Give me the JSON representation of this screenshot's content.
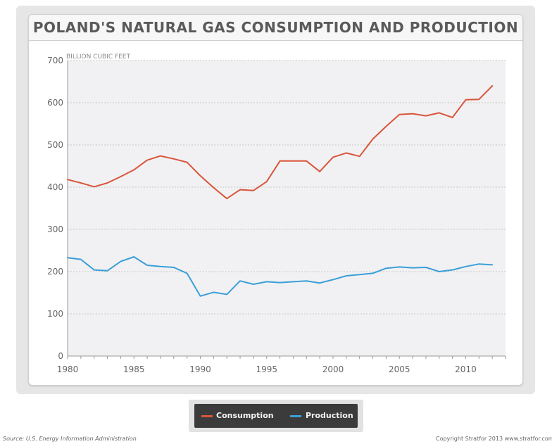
{
  "chart_data": {
    "type": "line",
    "title": "POLAND'S NATURAL GAS CONSUMPTION AND PRODUCTION",
    "ylabel": "BILLION CUBIC FEET",
    "xlabel": "",
    "xlim": [
      1980,
      2013
    ],
    "ylim": [
      0,
      700
    ],
    "x_ticks": [
      "1980",
      "1985",
      "1990",
      "1995",
      "2000",
      "2005",
      "2010"
    ],
    "y_ticks": [
      "0",
      "100",
      "200",
      "300",
      "400",
      "500",
      "600",
      "700"
    ],
    "grid": true,
    "legend_position": "bottom",
    "x": [
      1980,
      1981,
      1982,
      1983,
      1984,
      1985,
      1986,
      1987,
      1988,
      1989,
      1990,
      1991,
      1992,
      1993,
      1994,
      1995,
      1996,
      1997,
      1998,
      1999,
      2000,
      2001,
      2002,
      2003,
      2004,
      2005,
      2006,
      2007,
      2008,
      2009,
      2010,
      2011,
      2012,
      2013
    ],
    "series": [
      {
        "name": "Consumption",
        "color": "#d9553a",
        "values": [
          418,
          410,
          401,
          410,
          425,
          441,
          464,
          474,
          467,
          459,
          427,
          399,
          373,
          394,
          392,
          413,
          462,
          462,
          462,
          437,
          471,
          481,
          473,
          514,
          544,
          572,
          574,
          569,
          576,
          565,
          607,
          608,
          640,
          null
        ]
      },
      {
        "name": "Production",
        "color": "#3a9fd8",
        "values": [
          233,
          229,
          204,
          202,
          224,
          235,
          215,
          212,
          210,
          196,
          142,
          151,
          146,
          178,
          170,
          176,
          174,
          176,
          178,
          173,
          181,
          190,
          193,
          196,
          208,
          211,
          209,
          210,
          200,
          204,
          212,
          218,
          216,
          null
        ]
      }
    ]
  },
  "legend": {
    "items": [
      {
        "label": "Consumption",
        "color": "#d9553a"
      },
      {
        "label": "Production",
        "color": "#3a9fd8"
      }
    ]
  },
  "footer": {
    "source": "Source: U.S. Energy Information Administration",
    "copyright": "Copyright Stratfor 2013   www.stratfor.com"
  }
}
